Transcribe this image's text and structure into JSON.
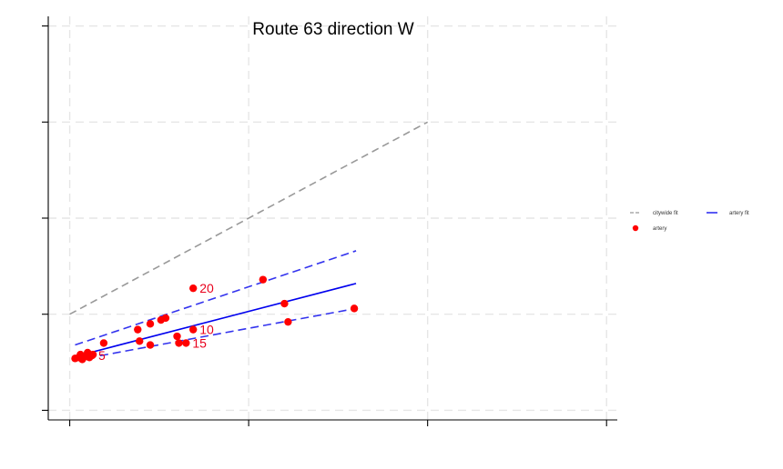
{
  "chart_data": {
    "type": "scatter",
    "title": "Route 63 direction W",
    "xlabel": "",
    "ylabel": "",
    "xlim": [
      -0.6,
      15.3
    ],
    "ylim": [
      -0.5,
      20.5
    ],
    "x_ticks": [
      0,
      5,
      10,
      15
    ],
    "y_ticks": [
      0,
      5,
      10,
      15,
      20
    ],
    "grid": true,
    "legend_position": "right",
    "colors": {
      "citywide": "#999999",
      "artery_fit": "#0000ee",
      "artery_band": "#3333ee",
      "points": "#ff0000",
      "point_labels": "#e8001c"
    },
    "series": [
      {
        "name": "citywide fit",
        "kind": "line",
        "style": "dashed",
        "x": [
          0,
          10
        ],
        "y": [
          5.0,
          15.0
        ]
      },
      {
        "name": "artery fit",
        "kind": "line",
        "style": "solid",
        "x": [
          0.15,
          8
        ],
        "y": [
          2.8,
          6.6
        ],
        "band_upper": {
          "x": [
            0.15,
            8
          ],
          "y": [
            3.4,
            8.3
          ]
        },
        "band_lower": {
          "x": [
            0.15,
            8
          ],
          "y": [
            2.6,
            5.3
          ]
        }
      },
      {
        "name": "artery",
        "kind": "scatter",
        "points": [
          {
            "x": 0.15,
            "y": 2.7
          },
          {
            "x": 0.25,
            "y": 2.75
          },
          {
            "x": 0.3,
            "y": 2.9
          },
          {
            "x": 0.35,
            "y": 2.65
          },
          {
            "x": 0.45,
            "y": 2.8
          },
          {
            "x": 0.5,
            "y": 3.0
          },
          {
            "x": 0.55,
            "y": 2.75
          },
          {
            "x": 0.62,
            "y": 2.85,
            "label": "5"
          },
          {
            "x": 0.65,
            "y": 2.9
          },
          {
            "x": 0.95,
            "y": 3.5
          },
          {
            "x": 1.9,
            "y": 4.2
          },
          {
            "x": 1.95,
            "y": 3.6
          },
          {
            "x": 2.25,
            "y": 4.5
          },
          {
            "x": 2.25,
            "y": 3.4
          },
          {
            "x": 2.55,
            "y": 4.7
          },
          {
            "x": 2.68,
            "y": 4.8
          },
          {
            "x": 3.0,
            "y": 3.85
          },
          {
            "x": 3.05,
            "y": 3.5
          },
          {
            "x": 3.25,
            "y": 3.5,
            "label": "15"
          },
          {
            "x": 3.45,
            "y": 4.2,
            "label": "10"
          },
          {
            "x": 3.45,
            "y": 6.35,
            "label": "20"
          },
          {
            "x": 5.4,
            "y": 6.8
          },
          {
            "x": 6.0,
            "y": 5.55
          },
          {
            "x": 6.1,
            "y": 4.6
          },
          {
            "x": 7.95,
            "y": 5.3
          }
        ]
      }
    ]
  }
}
